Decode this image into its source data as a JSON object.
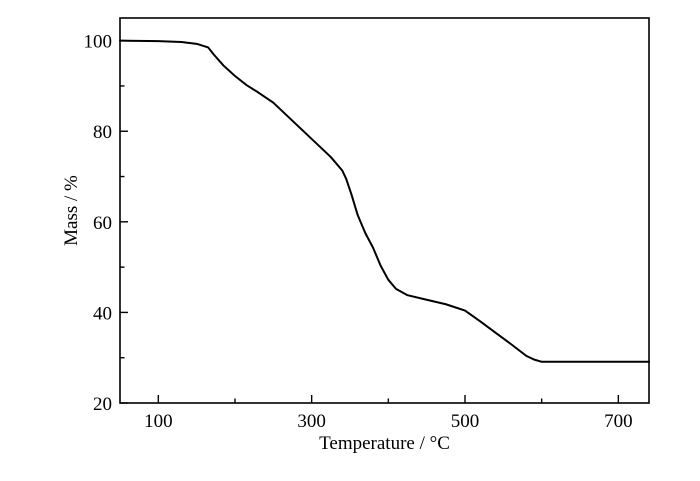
{
  "chart_data": {
    "type": "line",
    "xlabel": "Temperature / °C",
    "ylabel": "Mass / %",
    "xlim": [
      50,
      740
    ],
    "ylim": [
      20,
      105
    ],
    "x_ticks_major": [
      100,
      300,
      500,
      700
    ],
    "x_ticks_minor": [
      200,
      400,
      600
    ],
    "y_ticks_major": [
      20,
      40,
      60,
      80,
      100
    ],
    "y_ticks_minor": [
      30,
      50,
      70,
      90
    ],
    "grid": false,
    "legend": "none",
    "line_color": "#000000",
    "series": [
      {
        "x": [
          50,
          100,
          130,
          150,
          165,
          172,
          185,
          200,
          215,
          230,
          250,
          275,
          300,
          325,
          340,
          345,
          352,
          360,
          370,
          380,
          390,
          400,
          410,
          425,
          450,
          475,
          500,
          520,
          540,
          560,
          580,
          590,
          600,
          650,
          700,
          740
        ],
        "y": [
          100.0,
          99.9,
          99.7,
          99.3,
          98.5,
          97.0,
          94.5,
          92.2,
          90.2,
          88.6,
          86.3,
          82.3,
          78.3,
          74.3,
          71.3,
          69.5,
          66.0,
          61.5,
          57.5,
          54.3,
          50.3,
          47.2,
          45.2,
          43.8,
          42.8,
          41.8,
          40.4,
          38.0,
          35.5,
          33.0,
          30.4,
          29.6,
          29.1,
          29.1,
          29.1,
          29.1
        ]
      }
    ]
  }
}
